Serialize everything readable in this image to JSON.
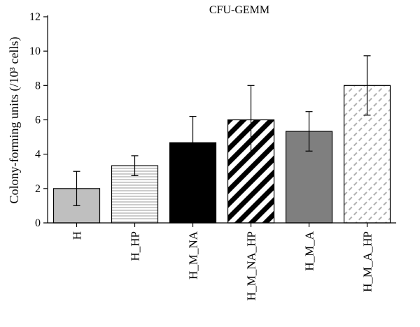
{
  "chart_data": {
    "type": "bar",
    "title": "CFU-GEMM",
    "ylabel": "Colony-forming units (/10³ cells)",
    "xlabel": "",
    "ylim": [
      0,
      12
    ],
    "yticks": [
      0,
      2,
      4,
      6,
      8,
      10,
      12
    ],
    "categories": [
      "H",
      "H_HP",
      "H_M_NA",
      "H_M_NA_HP",
      "H_M_A",
      "H_M_A_HP"
    ],
    "values": [
      2.0,
      3.33,
      4.67,
      6.0,
      5.33,
      8.0
    ],
    "errors": [
      1.0,
      0.58,
      1.53,
      2.0,
      1.15,
      1.73
    ],
    "fills": [
      "light-gray",
      "horizontal-stripes",
      "black",
      "diagonal-stripes-bold",
      "dark-gray",
      "dashed-diagonal"
    ],
    "colors": {
      "light_gray": "#bfbfbf",
      "dark_gray": "#7f7f7f",
      "black": "#000000",
      "stripe_gray": "#9a9a9a"
    },
    "grid": false,
    "legend": "none"
  }
}
